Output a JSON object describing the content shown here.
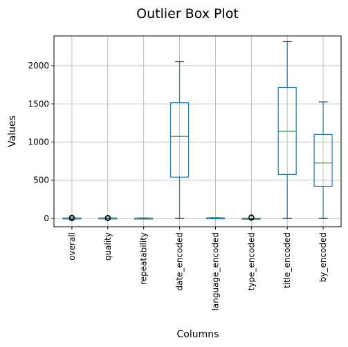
{
  "chart_data": {
    "type": "box",
    "title": "Outlier Box Plot",
    "xlabel": "Columns",
    "ylabel": "Values",
    "ylim": [
      -110,
      2390
    ],
    "yticks": [
      0,
      500,
      1000,
      1500,
      2000
    ],
    "grid": true,
    "colors": {
      "box": "#1f77b4",
      "median": "#2ca02c",
      "whisker": "#000000",
      "grid": "#b0b0b0"
    },
    "categories": [
      "overall",
      "quality",
      "repeatability",
      "date_encoded",
      "language_encoded",
      "type_encoded",
      "title_encoded",
      "by_encoded"
    ],
    "boxes": [
      {
        "name": "overall",
        "min": 2,
        "q1": 3,
        "median": 4,
        "q3": 4.5,
        "max": 5.5,
        "outliers": [
          0,
          1,
          7,
          8,
          9,
          10
        ]
      },
      {
        "name": "quality",
        "min": 2,
        "q1": 3,
        "median": 4,
        "q3": 4.5,
        "max": 5.5,
        "outliers": [
          0,
          1,
          7,
          8
        ]
      },
      {
        "name": "repeatability",
        "min": 1,
        "q1": 2,
        "median": 3,
        "q3": 4,
        "max": 5,
        "outliers": []
      },
      {
        "name": "date_encoded",
        "min": 0,
        "q1": 540,
        "median": 1075,
        "q3": 1515,
        "max": 2055,
        "outliers": []
      },
      {
        "name": "language_encoded",
        "min": 0,
        "q1": 3,
        "median": 5,
        "q3": 7,
        "max": 9,
        "outliers": []
      },
      {
        "name": "type_encoded",
        "min": 0,
        "q1": 1,
        "median": 1,
        "q3": 2,
        "max": 3,
        "outliers": [
          5,
          8,
          10,
          12,
          14
        ]
      },
      {
        "name": "title_encoded",
        "min": 0,
        "q1": 575,
        "median": 1140,
        "q3": 1715,
        "max": 2315,
        "outliers": []
      },
      {
        "name": "by_encoded",
        "min": 0,
        "q1": 420,
        "median": 725,
        "q3": 1100,
        "max": 1525,
        "outliers": []
      }
    ]
  }
}
